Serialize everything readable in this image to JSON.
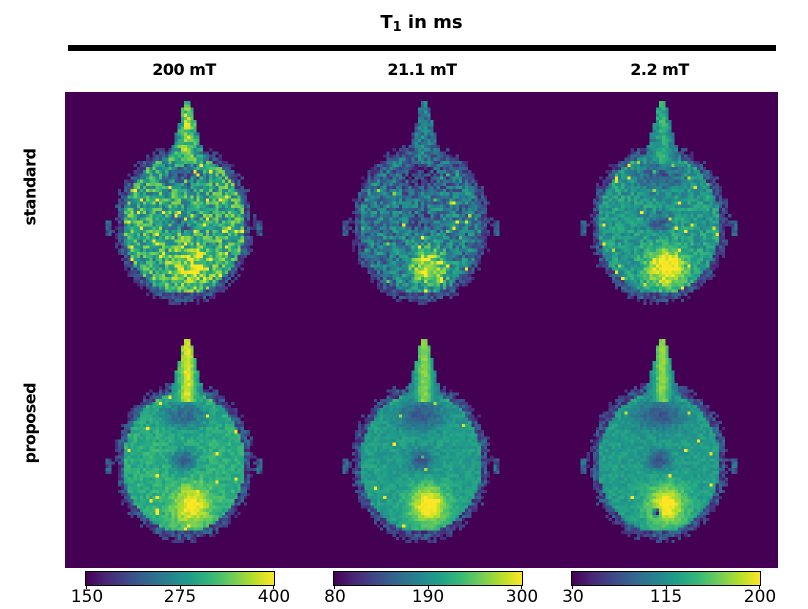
{
  "title": {
    "prefix": "T",
    "sub": "1",
    "suffix": " in ms"
  },
  "columns": [
    {
      "label": "200 mT"
    },
    {
      "label": "21.1 mT"
    },
    {
      "label": "2.2 mT"
    }
  ],
  "rows": [
    {
      "label": "standard"
    },
    {
      "label": "proposed"
    }
  ],
  "colorbars": [
    {
      "ticks": [
        "150",
        "275",
        "400"
      ]
    },
    {
      "ticks": [
        "80",
        "190",
        "300"
      ]
    },
    {
      "ticks": [
        "30",
        "115",
        "200"
      ]
    }
  ],
  "colors": {
    "figure_background": "#ffffff",
    "panel_background": "#440154",
    "rule": "#000000",
    "text": "#000000",
    "viridis": [
      "#440154",
      "#482878",
      "#3e4989",
      "#31688e",
      "#26828e",
      "#1f9e89",
      "#35b779",
      "#6dcd59",
      "#b4de2c",
      "#fde725"
    ]
  },
  "render": {
    "grid": {
      "cols": 68,
      "rows": 72,
      "cell": 3
    },
    "panels": [
      {
        "id": "standard-200mT",
        "seed": 11,
        "base": 0.62,
        "noise": 0.5,
        "speck": 0.04,
        "hot": 0.3,
        "vent": 0.3,
        "eyes": 0.1,
        "noseB": 0.3,
        "darkdot": 0
      },
      {
        "id": "standard-21.1mT",
        "seed": 23,
        "base": 0.4,
        "noise": 0.42,
        "speck": 0.03,
        "hot": 0.55,
        "vent": 0.2,
        "eyes": 0.35,
        "noseB": 0.15,
        "darkdot": 0
      },
      {
        "id": "standard-2.2mT",
        "seed": 37,
        "base": 0.54,
        "noise": 0.26,
        "speck": 0.02,
        "hot": 0.55,
        "vent": 0.25,
        "eyes": 0.2,
        "noseB": 0.2,
        "darkdot": 0
      },
      {
        "id": "proposed-200mT",
        "seed": 51,
        "base": 0.62,
        "noise": 0.16,
        "speck": 0.01,
        "hot": 0.4,
        "vent": 0.35,
        "eyes": 0.3,
        "noseB": 0.45,
        "darkdot": 0
      },
      {
        "id": "proposed-21.1mT",
        "seed": 67,
        "base": 0.55,
        "noise": 0.13,
        "speck": 0.005,
        "hot": 0.5,
        "vent": 0.3,
        "eyes": 0.35,
        "noseB": 0.4,
        "darkdot": 0
      },
      {
        "id": "proposed-2.2mT",
        "seed": 83,
        "base": 0.55,
        "noise": 0.13,
        "speck": 0.005,
        "hot": 0.5,
        "vent": 0.3,
        "eyes": 0.3,
        "noseB": 0.4,
        "darkdot": 0.9
      }
    ]
  },
  "chart_data": {
    "type": "heatmap",
    "title": "T1 in ms",
    "colormap": "viridis",
    "rows": [
      "standard",
      "proposed"
    ],
    "columns": [
      "200 mT",
      "21.1 mT",
      "2.2 mT"
    ],
    "colorbars": [
      {
        "column": "200 mT",
        "min": 150,
        "mid": 275,
        "max": 400,
        "unit": "ms"
      },
      {
        "column": "21.1 mT",
        "min": 80,
        "mid": 190,
        "max": 300,
        "unit": "ms"
      },
      {
        "column": "2.2 mT",
        "min": 30,
        "mid": 115,
        "max": 200,
        "unit": "ms"
      }
    ],
    "panels": [
      {
        "row": "standard",
        "column": "200 mT",
        "appearance": "noisy green axial brain T1 map, yellow speckles, dark frontal band, bright posterior hotspot"
      },
      {
        "row": "standard",
        "column": "21.1 mT",
        "appearance": "very noisy dark-blue map, bright orbit blobs, strong yellow posterior hotspot"
      },
      {
        "row": "standard",
        "column": "2.2 mT",
        "appearance": "moderately noisy teal map, bright yellow posterior hotspot"
      },
      {
        "row": "proposed",
        "column": "200 mT",
        "appearance": "smooth green map, bright nose wedge, orbit blobs, yellow posterior hotspot"
      },
      {
        "row": "proposed",
        "column": "21.1 mT",
        "appearance": "smooth teal map, bright orbit blobs, yellow posterior hotspot"
      },
      {
        "row": "proposed",
        "column": "2.2 mT",
        "appearance": "smooth teal map, yellow posterior hotspot with small dark dot"
      }
    ]
  }
}
